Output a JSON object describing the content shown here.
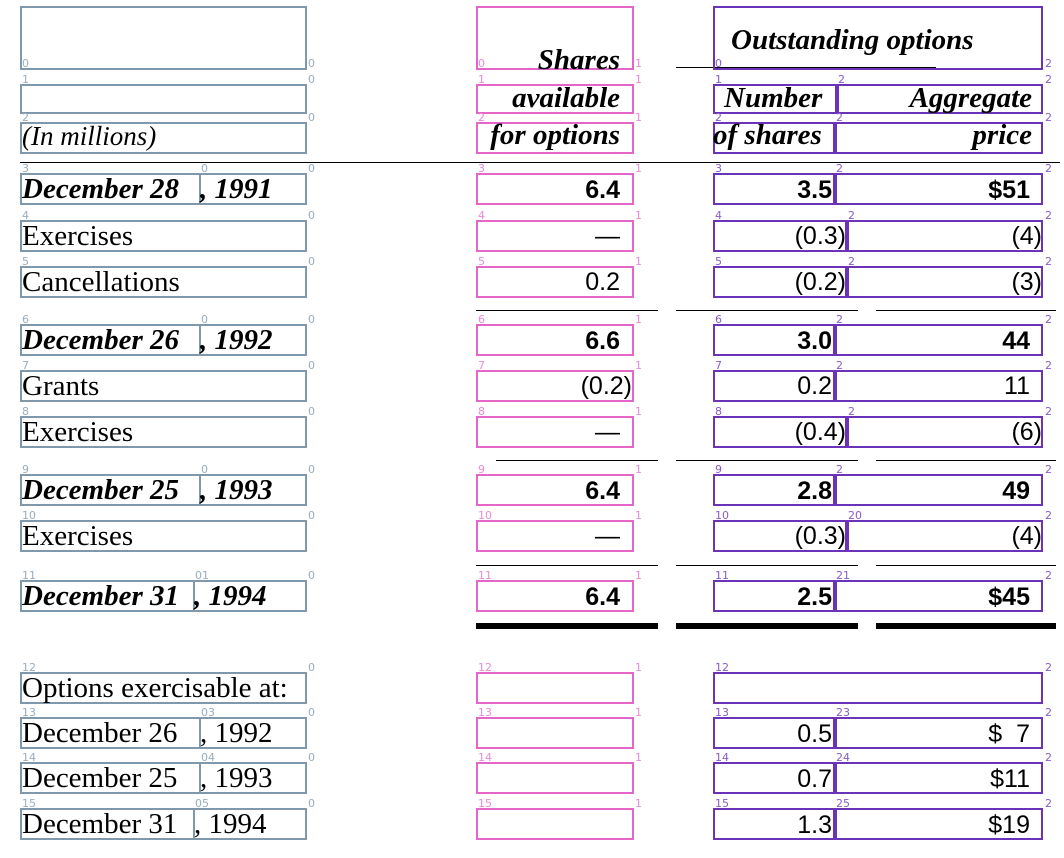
{
  "header": {
    "outstanding_options": "Outstanding options",
    "shares_line1": "Shares",
    "shares_line2": "available",
    "shares_line3": "for options",
    "number_line1": "Number",
    "number_line2": "of shares",
    "aggregate_line1": "Aggregate",
    "aggregate_line2": "price",
    "units": "(In millions)"
  },
  "rows": [
    {
      "label_a": "December 28",
      "label_b": ", 1991",
      "shares": "6.4",
      "number": "3.5",
      "price": "$51"
    },
    {
      "label_a": "Exercises",
      "label_b": "",
      "shares": "—",
      "number": "(0.3)",
      "price": "(4)"
    },
    {
      "label_a": "Cancellations",
      "label_b": "",
      "shares": "0.2",
      "number": "(0.2)",
      "price": "(3)"
    },
    {
      "label_a": "December 26",
      "label_b": ", 1992",
      "shares": "6.6",
      "number": "3.0",
      "price": "44"
    },
    {
      "label_a": "Grants",
      "label_b": "",
      "shares": "(0.2)",
      "number": "0.2",
      "price": "11"
    },
    {
      "label_a": "Exercises",
      "label_b": "",
      "shares": "—",
      "number": "(0.4)",
      "price": "(6)"
    },
    {
      "label_a": "December 25",
      "label_b": ", 1993",
      "shares": "6.4",
      "number": "2.8",
      "price": "49"
    },
    {
      "label_a": "Exercises",
      "label_b": "",
      "shares": "—",
      "number": "(0.3)",
      "price": "(4)"
    },
    {
      "label_a": "December 31",
      "label_b": ", 1994",
      "shares": "6.4",
      "number": "2.5",
      "price": "$45"
    }
  ],
  "exercisable": {
    "heading": "Options exercisable at:",
    "rows": [
      {
        "label_a": "December 26",
        "label_b": ", 1992",
        "number": "0.5",
        "price": "$  7"
      },
      {
        "label_a": "December 25",
        "label_b": ", 1993",
        "number": "0.7",
        "price": "$11"
      },
      {
        "label_a": "December 31",
        "label_b": ", 1994",
        "number": "1.3",
        "price": "$19"
      }
    ]
  },
  "overlay": {
    "col0": "0",
    "col1": "1",
    "col2": "2",
    "r0": "0",
    "r1": "1",
    "r2": "2",
    "r3": "3",
    "r4": "4",
    "r5": "5",
    "r6": "6",
    "r7": "7",
    "r8": "8",
    "r9": "9",
    "r10": "10",
    "r11": "11",
    "r12": "12",
    "r13": "13",
    "r14": "14",
    "r15": "15",
    "c0_r0": "0",
    "c0_r1": "0",
    "c0_r3": "0",
    "c0_r6": "0",
    "c0_r9": "0",
    "c0_r11": "01",
    "c0_r13": "03",
    "c0_r14": "04",
    "c0_r15": "05",
    "c2_r11": "21",
    "c2_r13": "23",
    "c2_r14": "24",
    "c2_r15": "25",
    "c2_r10": "20"
  },
  "colors": {
    "col0_border": "#7f98ab",
    "col1_border": "#e466c8",
    "col2_border": "#6a33b8"
  }
}
